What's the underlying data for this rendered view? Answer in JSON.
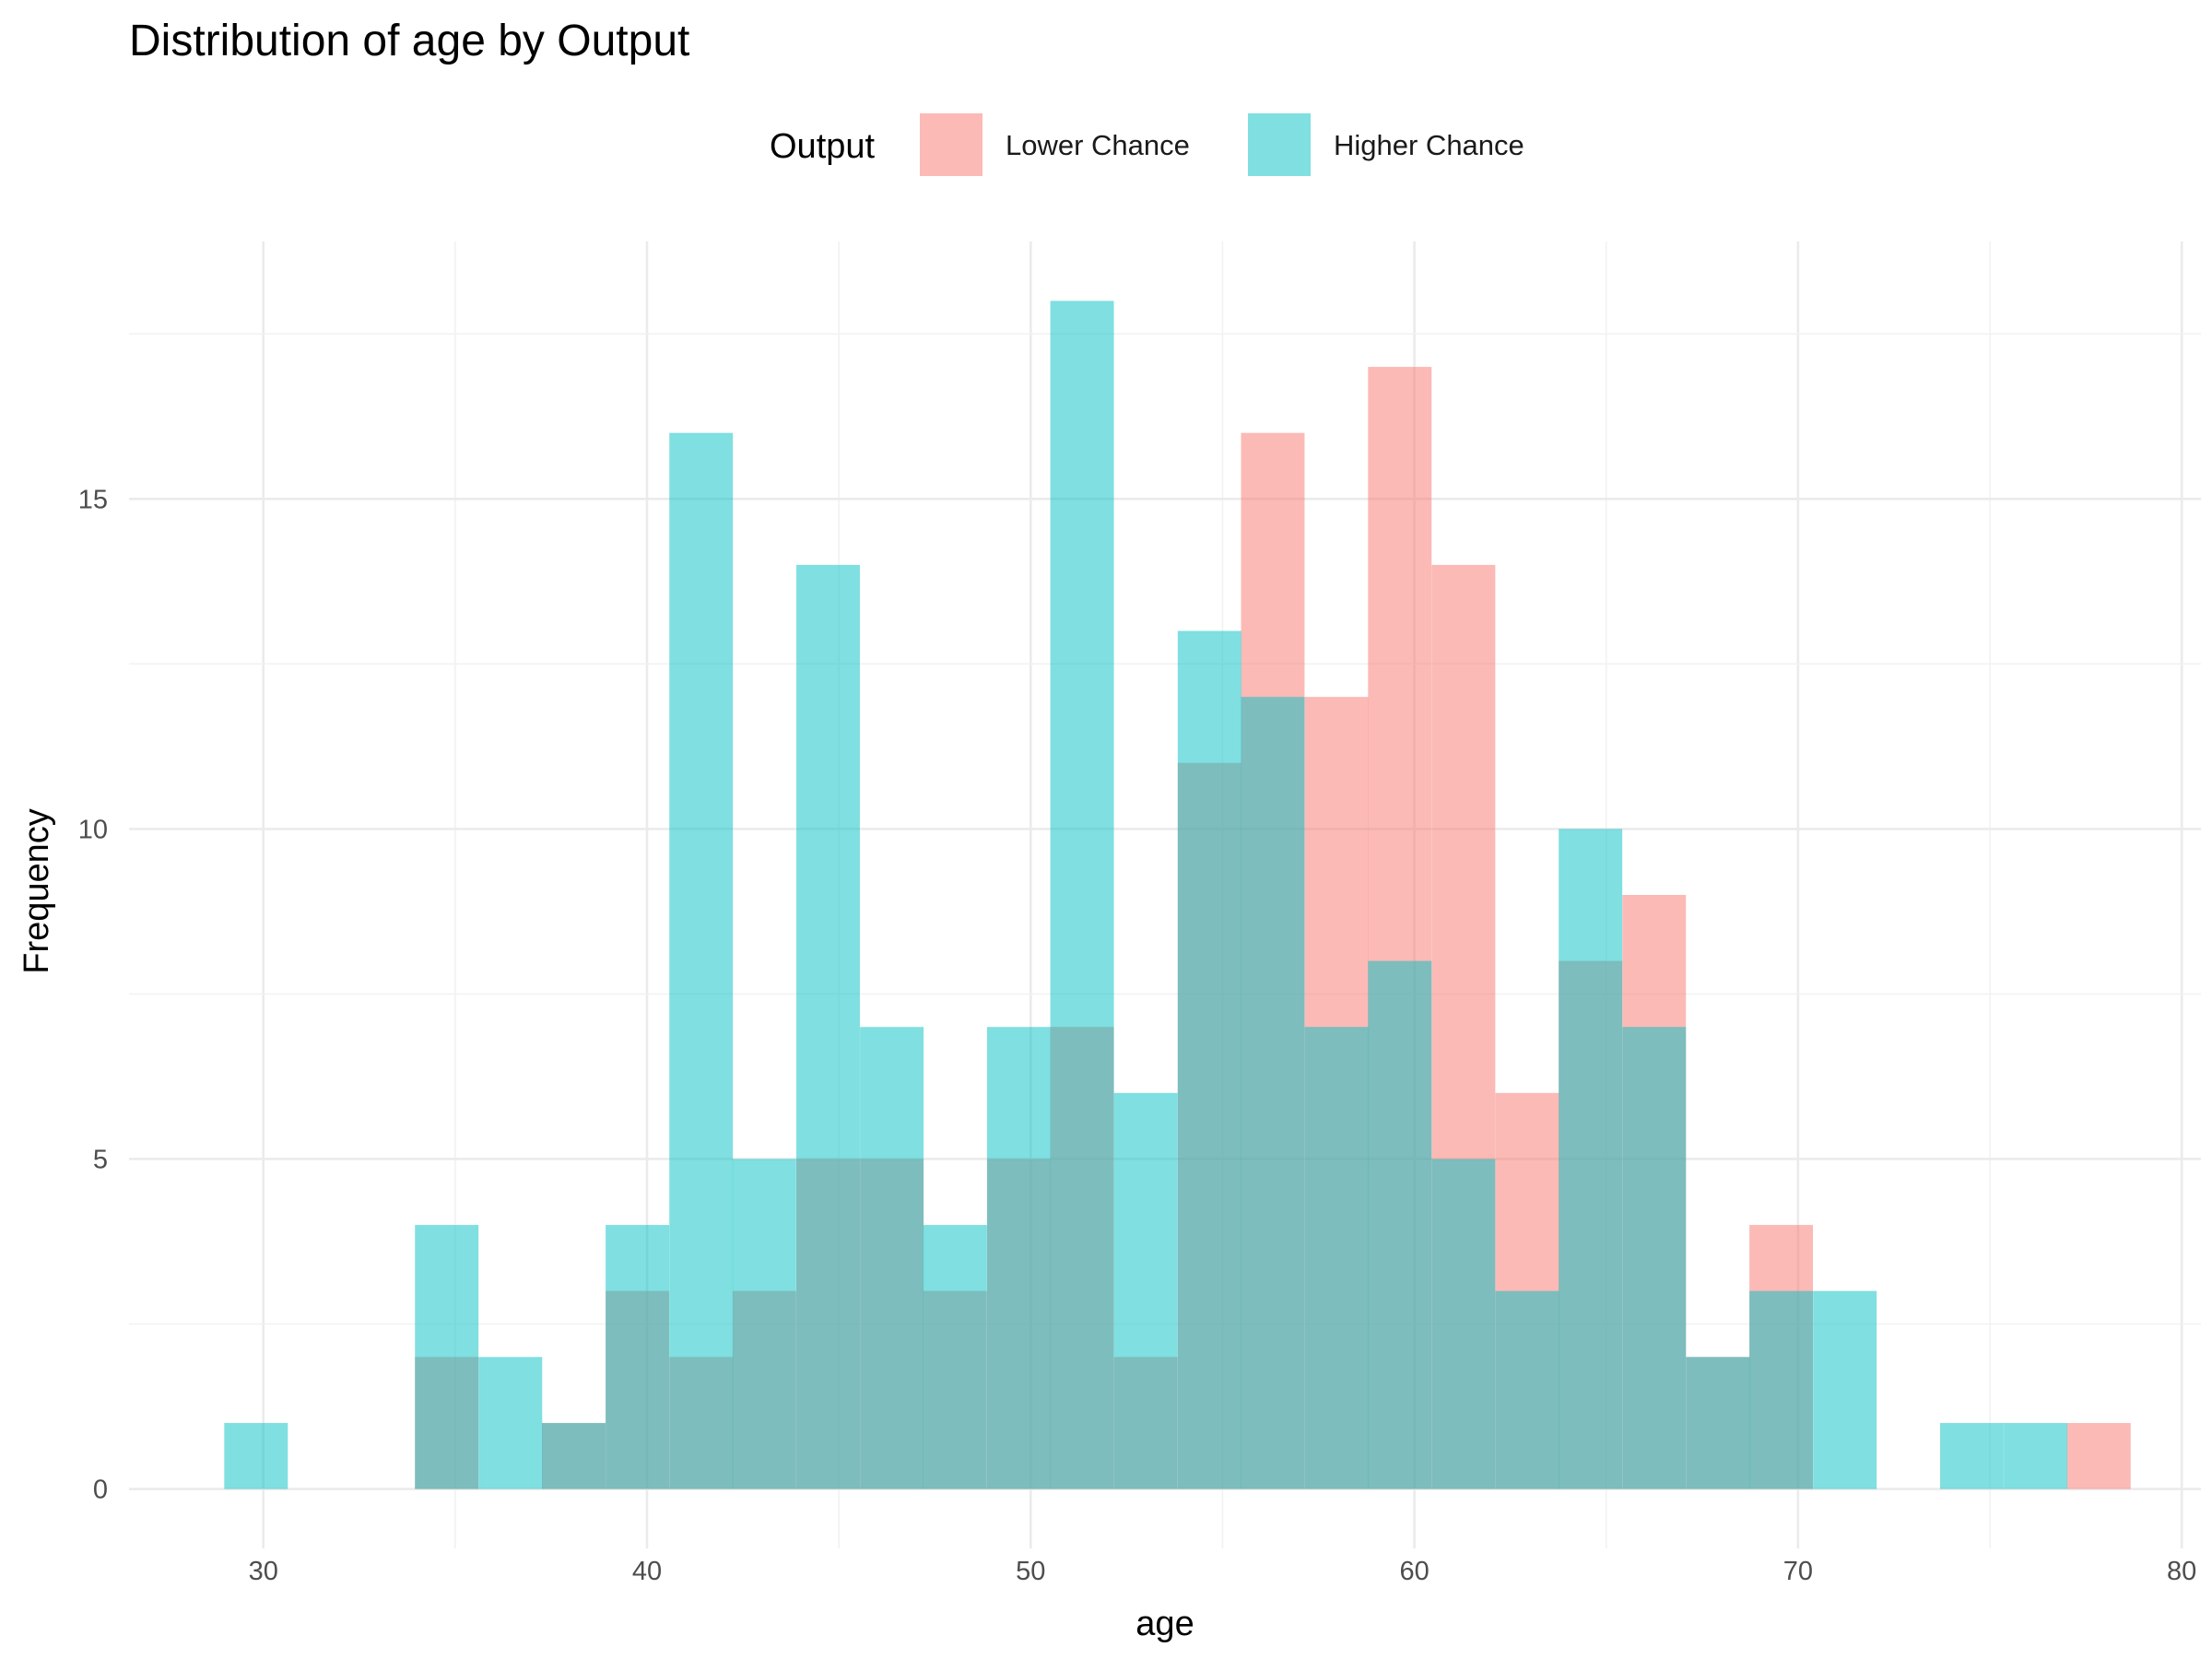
{
  "chart_data": {
    "type": "bar",
    "title": "Distribution of age by Output",
    "xlabel": "age",
    "ylabel": "Frequency",
    "xlim": [
      26.5,
      80.5
    ],
    "ylim": [
      -0.9,
      18.9
    ],
    "xticks": [
      30,
      40,
      50,
      60,
      70,
      80
    ],
    "yticks": [
      0,
      5,
      10,
      15
    ],
    "grid": true,
    "legend": {
      "title": "Output",
      "position": "top"
    },
    "bin_width": 1.656,
    "bin_centers": [
      29.81,
      31.47,
      33.12,
      34.78,
      36.44,
      38.09,
      39.75,
      41.41,
      43.06,
      44.72,
      46.38,
      48.03,
      49.69,
      51.34,
      53.0,
      54.66,
      56.31,
      57.97,
      59.62,
      61.28,
      62.94,
      64.59,
      66.25,
      67.91,
      69.56,
      71.22,
      72.88,
      74.53,
      76.19,
      77.84
    ],
    "series": [
      {
        "name": "Lower Chance",
        "color": "#F8766D",
        "values": [
          0,
          0,
          0,
          2,
          0,
          1,
          3,
          2,
          3,
          5,
          5,
          3,
          5,
          7,
          2,
          11,
          16,
          12,
          17,
          14,
          6,
          8,
          9,
          2,
          4,
          0,
          0,
          0,
          0,
          1
        ]
      },
      {
        "name": "Higher Chance",
        "color": "#00BFC4",
        "values": [
          1,
          0,
          0,
          4,
          2,
          1,
          4,
          16,
          5,
          14,
          7,
          4,
          7,
          18,
          6,
          13,
          12,
          7,
          8,
          5,
          3,
          10,
          7,
          2,
          3,
          3,
          0,
          1,
          1,
          0
        ]
      }
    ]
  }
}
